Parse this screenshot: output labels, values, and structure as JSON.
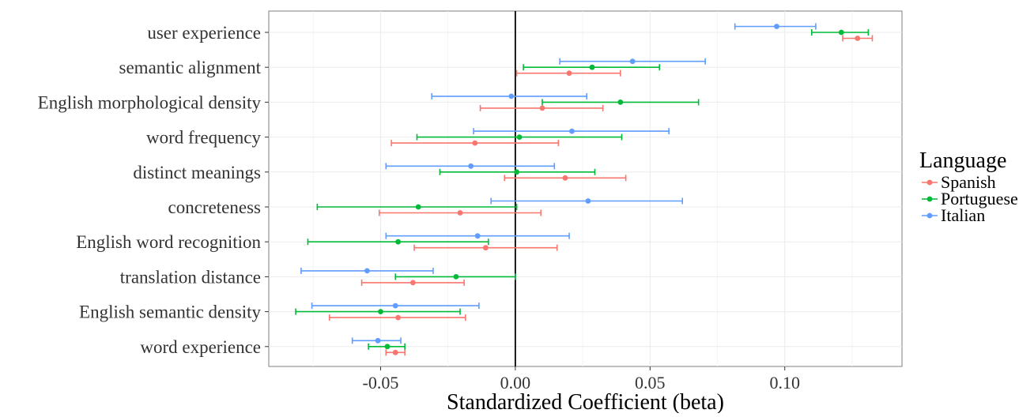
{
  "chart_data": {
    "type": "errorbar",
    "xlabel": "Standardized Coefficient (beta)",
    "ylabel": "",
    "xlim": [
      -0.0915,
      0.1435
    ],
    "xticks": [
      "-0.05",
      "0.00",
      "0.05",
      "0.10"
    ],
    "xtick_values": [
      -0.05,
      0.0,
      0.05,
      0.1
    ],
    "grid": true,
    "reference_line": 0.0,
    "legend": {
      "title": "Language",
      "placement": "right"
    },
    "categories": [
      "user experience",
      "semantic alignment",
      "English morphological density",
      "word frequency",
      "distinct meanings",
      "concreteness",
      "English word recognition",
      "translation distance",
      "English semantic density",
      "word experience"
    ],
    "series": [
      {
        "name": "Spanish",
        "color": "#F8766D",
        "estimates": [
          0.127,
          0.02,
          0.01,
          -0.015,
          0.0185,
          -0.0205,
          -0.011,
          -0.038,
          -0.0435,
          -0.0445
        ],
        "lower": [
          0.1215,
          0.0005,
          -0.013,
          -0.046,
          -0.004,
          -0.0505,
          -0.0375,
          -0.057,
          -0.069,
          -0.048
        ],
        "upper": [
          0.1325,
          0.039,
          0.0325,
          0.016,
          0.041,
          0.0095,
          0.0155,
          -0.019,
          -0.0185,
          -0.041
        ]
      },
      {
        "name": "Portuguese",
        "color": "#00BA38",
        "estimates": [
          0.121,
          0.0285,
          0.039,
          0.0015,
          0.0005,
          -0.036,
          -0.0435,
          -0.022,
          -0.05,
          -0.0475
        ],
        "lower": [
          0.11,
          0.003,
          0.01,
          -0.0365,
          -0.028,
          -0.0735,
          -0.077,
          -0.0445,
          -0.0815,
          -0.0545
        ],
        "upper": [
          0.131,
          0.0535,
          0.068,
          0.0395,
          0.0295,
          0.0005,
          -0.01,
          0.0,
          -0.0205,
          -0.041
        ]
      },
      {
        "name": "Italian",
        "color": "#619CFF",
        "estimates": [
          0.097,
          0.0435,
          -0.0015,
          0.021,
          -0.0165,
          0.027,
          -0.014,
          -0.055,
          -0.0445,
          -0.051
        ],
        "lower": [
          0.0815,
          0.0165,
          -0.031,
          -0.0155,
          -0.048,
          -0.009,
          -0.048,
          -0.0795,
          -0.0755,
          -0.0605
        ],
        "upper": [
          0.1115,
          0.0705,
          0.0265,
          0.057,
          0.0145,
          0.062,
          0.02,
          -0.0305,
          -0.0135,
          -0.0425
        ]
      }
    ]
  }
}
